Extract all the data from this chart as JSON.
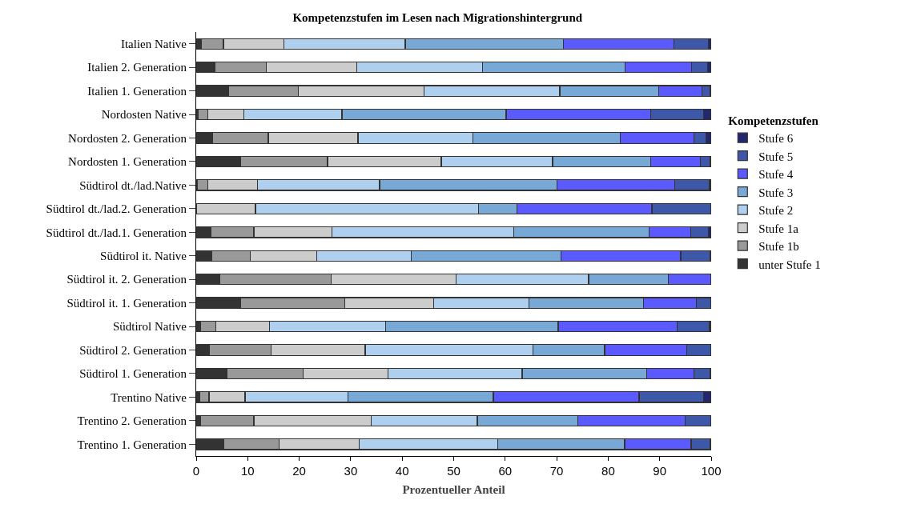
{
  "chart_data": {
    "type": "bar",
    "orientation": "horizontal",
    "stacked": true,
    "title": "Kompetenzstufen im Lesen nach Migrationshintergrund",
    "xlabel": "Prozentueller Anteil",
    "legend_title": "Kompetenzstufen",
    "legend": "right",
    "grid": false,
    "xlim": [
      0,
      100
    ],
    "xticks": [
      0,
      10,
      20,
      30,
      40,
      50,
      60,
      70,
      80,
      90,
      100
    ],
    "categories": [
      "Italien Native",
      "Italien 2. Generation",
      "Italien 1. Generation",
      "Nordosten Native",
      "Nordosten 2. Generation",
      "Nordosten 1. Generation",
      "Südtirol dt./lad.Native",
      "Südtirol dt./lad.2. Generation",
      "Südtirol dt./lad.1. Generation",
      "Südtirol it. Native",
      "Südtirol it. 2. Generation",
      "Südtirol it. 1. Generation",
      "Südtirol Native",
      "Südtirol 2. Generation",
      "Südtirol 1. Generation",
      "Trentino Native",
      "Trentino 2. Generation",
      "Trentino 1. Generation"
    ],
    "series": [
      {
        "name": "unter Stufe 1",
        "color": "#333333",
        "values": [
          1.0,
          3.6,
          6.3,
          0.4,
          3.2,
          8.6,
          0.2,
          0,
          2.8,
          3.0,
          4.6,
          8.6,
          0.8,
          2.5,
          6.0,
          0.7,
          0.8,
          5.3
        ]
      },
      {
        "name": "Stufe 1b",
        "color": "#999999",
        "values": [
          4.3,
          10.0,
          13.5,
          1.8,
          10.8,
          16.9,
          2.0,
          0,
          8.4,
          7.5,
          21.6,
          20.2,
          3.0,
          12.0,
          14.8,
          1.8,
          10.4,
          10.8
        ]
      },
      {
        "name": "Stufe 1a",
        "color": "#cccccc",
        "values": [
          11.7,
          17.6,
          24.4,
          7.1,
          17.4,
          22.1,
          9.7,
          11.5,
          15.2,
          12.9,
          24.3,
          17.3,
          10.4,
          18.3,
          16.5,
          7.0,
          22.8,
          15.5
        ]
      },
      {
        "name": "Stufe 2",
        "color": "#aed0ee",
        "values": [
          23.6,
          24.4,
          26.4,
          19.0,
          22.3,
          21.6,
          23.7,
          43.3,
          35.3,
          18.3,
          25.7,
          18.5,
          22.6,
          32.6,
          26.0,
          20.0,
          20.6,
          27.0
        ]
      },
      {
        "name": "Stufe 3",
        "color": "#78a8d6",
        "values": [
          30.7,
          27.7,
          19.2,
          31.9,
          28.6,
          19.0,
          34.5,
          7.5,
          26.3,
          29.1,
          15.5,
          22.2,
          33.5,
          13.9,
          24.2,
          28.2,
          19.5,
          24.6
        ]
      },
      {
        "name": "Stufe 4",
        "color": "#5a5aff",
        "values": [
          21.5,
          12.9,
          8.4,
          28.0,
          14.3,
          9.7,
          22.8,
          26.2,
          8.0,
          23.3,
          8.3,
          10.3,
          23.1,
          15.9,
          9.1,
          28.3,
          20.9,
          12.9
        ]
      },
      {
        "name": "Stufe 5",
        "color": "#3d58a8",
        "values": [
          6.6,
          3.1,
          1.6,
          10.3,
          2.4,
          1.9,
          6.8,
          11.5,
          3.5,
          5.7,
          0,
          2.9,
          6.3,
          4.8,
          3.2,
          12.5,
          5.0,
          3.7
        ]
      },
      {
        "name": "Stufe 6",
        "color": "#23286e",
        "values": [
          0.6,
          0.7,
          0.2,
          1.5,
          1.0,
          0.2,
          0.3,
          0,
          0.5,
          0.2,
          0,
          0,
          0.3,
          0,
          0.2,
          1.5,
          0,
          0.2
        ]
      }
    ]
  }
}
